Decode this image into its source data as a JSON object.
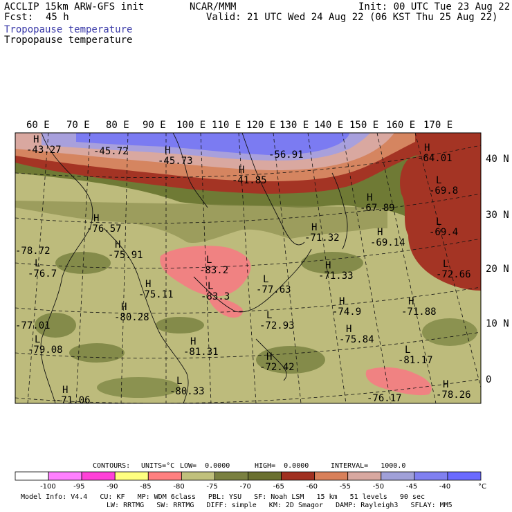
{
  "header": {
    "model": "ACCLIP 15km ARW-GFS init",
    "fcst_label": "Fcst:",
    "fcst_value": "45 h",
    "center": "NCAR/MMM",
    "init": "Init: 00 UTC Tue 23 Aug 22",
    "valid": "Valid: 21 UTC Wed 24 Aug 22 (06 KST Thu 25 Aug 22)",
    "field_title_colored": "Tropopause temperature",
    "field_title": "Tropopause temperature"
  },
  "map": {
    "lon_labels": [
      "60 E",
      "70 E",
      "80 E",
      "90 E",
      "100 E",
      "110 E",
      "120 E",
      "130 E",
      "140 E",
      "150 E",
      "160 E",
      "170 E"
    ],
    "lat_labels": [
      "40 N",
      "30 N",
      "20 N",
      "10 N",
      "0"
    ],
    "extremes": [
      {
        "t": "H",
        "v": "-43.27"
      },
      {
        "t": "",
        "v": "-45.72"
      },
      {
        "t": "H",
        "v": "-45.73"
      },
      {
        "t": "",
        "v": "-56.91"
      },
      {
        "t": "H",
        "v": "-41.85"
      },
      {
        "t": "H",
        "v": "-64.01"
      },
      {
        "t": "L",
        "v": "-69.8"
      },
      {
        "t": "H",
        "v": "-67.89"
      },
      {
        "t": "L",
        "v": "-69.4"
      },
      {
        "t": "H",
        "v": "-76.57"
      },
      {
        "t": "",
        "v": "-78.72"
      },
      {
        "t": "H",
        "v": "-71.32"
      },
      {
        "t": "H",
        "v": "-69.14"
      },
      {
        "t": "H",
        "v": "-75.91"
      },
      {
        "t": "L",
        "v": "-83.2"
      },
      {
        "t": "L",
        "v": "-76.7"
      },
      {
        "t": "H",
        "v": "-71.33"
      },
      {
        "t": "L",
        "v": "-72.66"
      },
      {
        "t": "H",
        "v": "-75.11"
      },
      {
        "t": "L",
        "v": "-83.3"
      },
      {
        "t": "L",
        "v": "-77.63"
      },
      {
        "t": "H",
        "v": "-74.9"
      },
      {
        "t": "",
        "v": "-77.01"
      },
      {
        "t": "H",
        "v": "-80.28"
      },
      {
        "t": "L",
        "v": "-72.93"
      },
      {
        "t": "H",
        "v": "-71.88"
      },
      {
        "t": "H",
        "v": "-75.84"
      },
      {
        "t": "L",
        "v": "-79.08"
      },
      {
        "t": "H",
        "v": "-81.31"
      },
      {
        "t": "L",
        "v": "-81.17"
      },
      {
        "t": "H",
        "v": "-72.42"
      },
      {
        "t": "H",
        "v": "-71.06"
      },
      {
        "t": "L",
        "v": "-80.33"
      },
      {
        "t": "",
        "v": "-76.17"
      },
      {
        "t": "H",
        "v": "-78.26"
      }
    ]
  },
  "contours": {
    "label": "CONTOURS:",
    "units": "UNITS=°C",
    "low": "LOW=  0.0000",
    "high": "HIGH=  0.0000",
    "interval": "INTERVAL=   1000.0"
  },
  "colorbar": {
    "colors": [
      "#ffffff",
      "#ff80ff",
      "#ff40d8",
      "#ffff80",
      "#ff8080",
      "#c0c07c",
      "#7a8040",
      "#6a7030",
      "#a03020",
      "#d8805a",
      "#d8a8a0",
      "#a0a0d8",
      "#8080f0",
      "#6a6aff"
    ],
    "ticks": [
      "-100",
      "-95",
      "-90",
      "-85",
      "-80",
      "-75",
      "-70",
      "-65",
      "-60",
      "-55",
      "-50",
      "-45",
      "-40",
      "°C"
    ]
  },
  "footer": {
    "line1": [
      {
        "k": "Model Info:",
        "v": "V4.4"
      },
      {
        "k": "CU:",
        "v": "KF"
      },
      {
        "k": "MP:",
        "v": "WDM 6class"
      },
      {
        "k": "PBL:",
        "v": "YSU"
      },
      {
        "k": "SF:",
        "v": "Noah LSM"
      },
      {
        "k": "",
        "v": "15 km"
      },
      {
        "k": "",
        "v": "51 levels"
      },
      {
        "k": "",
        "v": "90 sec"
      }
    ],
    "line2": [
      {
        "k": "LW:",
        "v": "RRTMG"
      },
      {
        "k": "SW:",
        "v": "RRTMG"
      },
      {
        "k": "DIFF:",
        "v": "simple"
      },
      {
        "k": "KM:",
        "v": "2D Smagor"
      },
      {
        "k": "DAMP:",
        "v": "Rayleigh3"
      },
      {
        "k": "SFLAY:",
        "v": "MM5"
      }
    ]
  }
}
